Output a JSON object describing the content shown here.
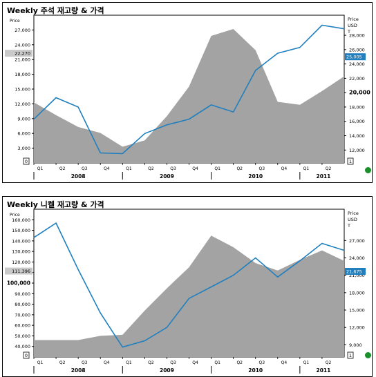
{
  "chart_data": [
    {
      "type": "area+line",
      "title": "Weekly 주석 재고량 & 가격",
      "left_axis_label": "Price",
      "right_axis_label": "Price\nUSD\nT",
      "left_ticks": [
        "3,000",
        "6,000",
        "9,000",
        "12,000",
        "15,000",
        "18,000",
        "21,000",
        "24,000",
        "27,000"
      ],
      "left_tick_values": [
        3000,
        6000,
        9000,
        12000,
        15000,
        18000,
        21000,
        24000,
        27000
      ],
      "left_range": [
        0,
        30000
      ],
      "left_marker": "22,270",
      "left_marker_value": 22270,
      "left_zero_label": "0",
      "right_ticks": [
        "12,000",
        "14,000",
        "16,000",
        "18,000",
        "20,000",
        "22,000",
        "24,000",
        "26,000",
        "28,000"
      ],
      "right_tick_values": [
        12000,
        14000,
        16000,
        18000,
        20000,
        22000,
        24000,
        26000,
        28000
      ],
      "right_bold_tick": "20,000",
      "right_range": [
        10200,
        30800
      ],
      "right_marker": "25,005",
      "right_marker_value": 25005,
      "right_min_label": "1",
      "quarter_labels": [
        "Q1",
        "Q2",
        "Q3",
        "Q4",
        "Q1",
        "Q2",
        "Q3",
        "Q4",
        "Q1",
        "Q2",
        "Q3",
        "Q4",
        "Q1",
        "Q2"
      ],
      "year_labels": [
        "2008",
        "2009",
        "2010",
        "2011"
      ],
      "x": [
        0,
        1,
        2,
        3,
        4,
        5,
        6,
        7,
        8,
        9,
        10,
        11,
        12,
        13,
        14
      ],
      "stock_series": {
        "name": "재고량",
        "axis": "left",
        "values": [
          12300,
          9700,
          7300,
          6100,
          3300,
          4600,
          9500,
          15500,
          25800,
          27200,
          22900,
          12400,
          11800,
          14600,
          17600
        ]
      },
      "price_series": {
        "name": "가격",
        "axis": "right",
        "values": [
          16300,
          19300,
          18000,
          11600,
          11500,
          14300,
          15500,
          16300,
          18300,
          17300,
          23100,
          25500,
          26300,
          29400,
          28900
        ]
      }
    },
    {
      "type": "area+line",
      "title": "Weekly 니켈 재고량 & 가격",
      "left_axis_label": "Price",
      "right_axis_label": "Price\nUSD\nT",
      "left_ticks": [
        "40,000",
        "50,000",
        "60,000",
        "70,000",
        "80,000",
        "90,000",
        "100,000",
        "110,000",
        "120,000",
        "130,000",
        "140,000",
        "150,000",
        "160,000"
      ],
      "left_tick_values": [
        40000,
        50000,
        60000,
        70000,
        80000,
        90000,
        100000,
        110000,
        120000,
        130000,
        140000,
        150000,
        160000
      ],
      "left_bold_tick": "100,000",
      "left_range": [
        30000,
        170000
      ],
      "left_marker": "111,396",
      "left_marker_value": 111396,
      "left_zero_label": "0",
      "right_ticks": [
        "9,000",
        "12,000",
        "15,000",
        "18,000",
        "21,000",
        "24,000",
        "27,000"
      ],
      "right_tick_values": [
        9000,
        12000,
        15000,
        18000,
        21000,
        24000,
        27000
      ],
      "right_range": [
        6900,
        32400
      ],
      "right_marker": "21,675",
      "right_marker_value": 21675,
      "right_min_label": "1",
      "quarter_labels": [
        "Q1",
        "Q2",
        "Q3",
        "Q4",
        "Q1",
        "Q2",
        "Q3",
        "Q4",
        "Q1",
        "Q2",
        "Q3",
        "Q4",
        "Q1",
        "Q2"
      ],
      "year_labels": [
        "2008",
        "2009",
        "2010",
        "2011"
      ],
      "x": [
        0,
        1,
        2,
        3,
        4,
        5,
        6,
        7,
        8,
        9,
        10,
        11,
        12,
        13,
        14
      ],
      "stock_series": {
        "name": "재고량",
        "axis": "left",
        "values": [
          46000,
          46000,
          46000,
          50000,
          51000,
          74000,
          95000,
          115000,
          145000,
          134000,
          119000,
          112000,
          122000,
          131000,
          121000
        ]
      },
      "price_series": {
        "name": "가격",
        "axis": "right",
        "values": [
          27500,
          30000,
          22000,
          14500,
          8600,
          9700,
          12000,
          17000,
          19000,
          21000,
          24000,
          20700,
          23500,
          26500,
          25300
        ]
      }
    }
  ]
}
